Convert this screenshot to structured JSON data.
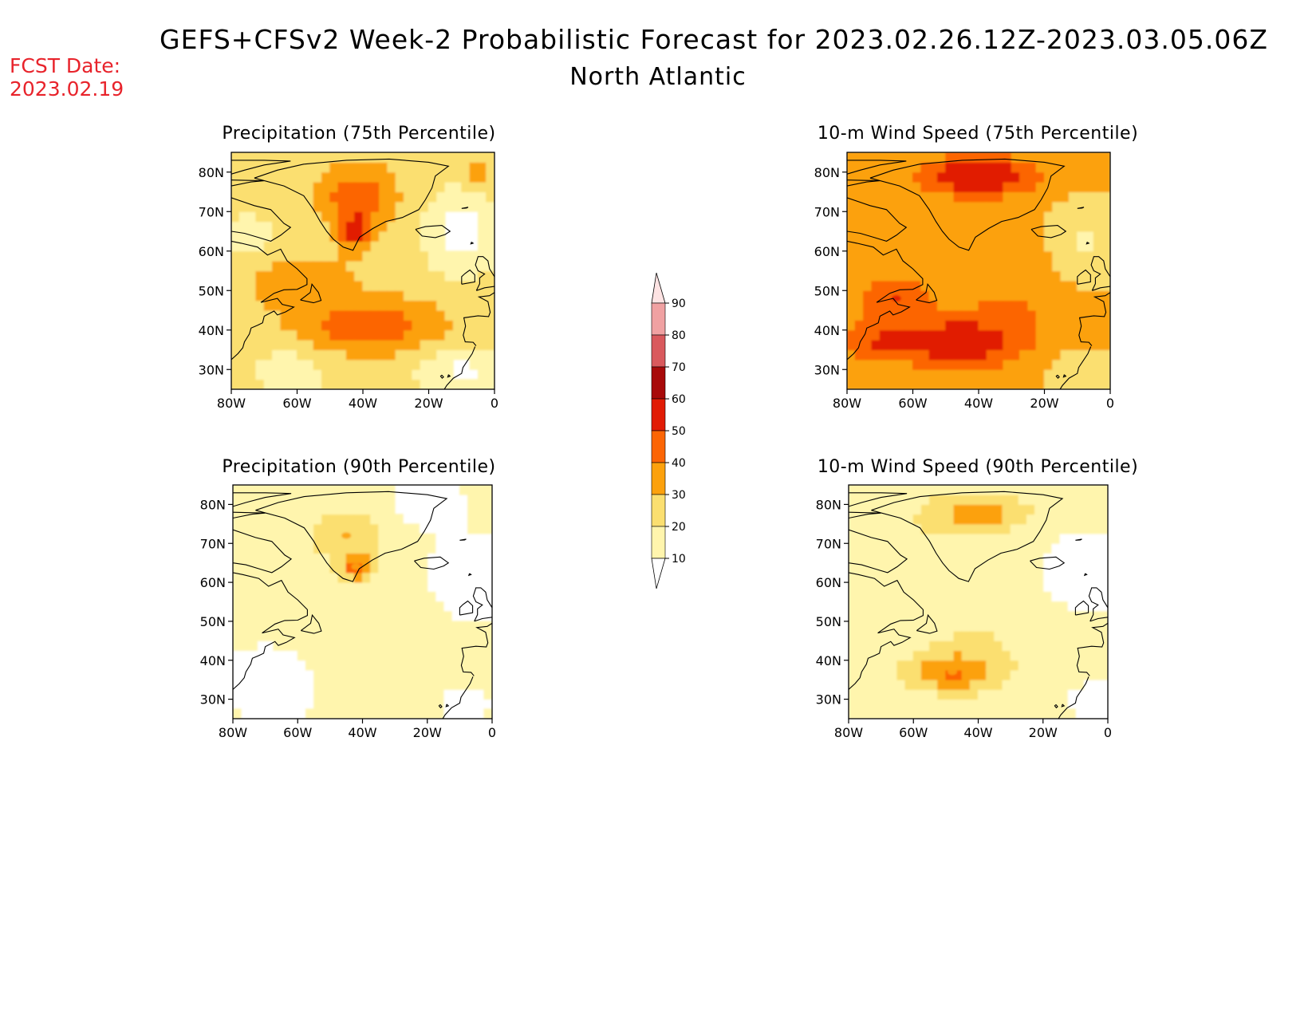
{
  "header": {
    "fcst_date_label": "FCST Date:",
    "fcst_date_value": "2023.02.19",
    "title": "GEFS+CFSv2 Week-2 Probabilistic Forecast for 2023.02.26.12Z-2023.03.05.06Z",
    "region": "North Atlantic"
  },
  "colors": {
    "date_label": "#e8232b",
    "levels": [
      "#ffffff",
      "#fff5ad",
      "#fbdf70",
      "#fca10d",
      "#fc6505",
      "#e11b05",
      "#a80a0a",
      "#d9595d",
      "#f0a1a2",
      "#fde3e3"
    ]
  },
  "colorbar": {
    "ticks": [
      "10",
      "20",
      "30",
      "40",
      "50",
      "60",
      "70",
      "80",
      "90"
    ]
  },
  "chart_data": [
    {
      "type": "heatmap",
      "title": "Precipitation (75th Percentile)",
      "x_ticks": [
        "80W",
        "60W",
        "40W",
        "20W",
        "0"
      ],
      "y_ticks": [
        "80N",
        "70N",
        "60N",
        "50N",
        "40N",
        "30N"
      ],
      "xlim": [
        -80,
        0
      ],
      "ylim": [
        25,
        85
      ],
      "peak_probability": 60,
      "hotspots": [
        {
          "lon": -42,
          "lat": 64,
          "value": 55
        },
        {
          "lon": -45,
          "lat": 73,
          "value": 45
        },
        {
          "lon": -38,
          "lat": 40,
          "value": 45
        }
      ]
    },
    {
      "type": "heatmap",
      "title": "10-m Wind Speed (75th Percentile)",
      "x_ticks": [
        "80W",
        "60W",
        "40W",
        "20W",
        "0"
      ],
      "y_ticks": [
        "80N",
        "70N",
        "60N",
        "50N",
        "40N",
        "30N"
      ],
      "xlim": [
        -80,
        0
      ],
      "ylim": [
        25,
        85
      ],
      "peak_probability": 60,
      "hotspots": [
        {
          "lon": -40,
          "lat": 79,
          "value": 55
        },
        {
          "lon": -48,
          "lat": 37,
          "value": 55
        },
        {
          "lon": -65,
          "lat": 48,
          "value": 50
        }
      ]
    },
    {
      "type": "heatmap",
      "title": "Precipitation (90th Percentile)",
      "x_ticks": [
        "80W",
        "60W",
        "40W",
        "20W",
        "0"
      ],
      "y_ticks": [
        "80N",
        "70N",
        "60N",
        "50N",
        "40N",
        "30N"
      ],
      "xlim": [
        -80,
        0
      ],
      "ylim": [
        25,
        85
      ],
      "peak_probability": 40,
      "hotspots": [
        {
          "lon": -42,
          "lat": 64,
          "value": 35
        },
        {
          "lon": -45,
          "lat": 72,
          "value": 35
        }
      ]
    },
    {
      "type": "heatmap",
      "title": "10-m Wind Speed (90th Percentile)",
      "x_ticks": [
        "80W",
        "60W",
        "40W",
        "20W",
        "0"
      ],
      "y_ticks": [
        "80N",
        "70N",
        "60N",
        "50N",
        "40N",
        "30N"
      ],
      "xlim": [
        -80,
        0
      ],
      "ylim": [
        25,
        85
      ],
      "peak_probability": 40,
      "hotspots": [
        {
          "lon": -40,
          "lat": 78,
          "value": 35
        },
        {
          "lon": -48,
          "lat": 37,
          "value": 35
        }
      ]
    }
  ]
}
